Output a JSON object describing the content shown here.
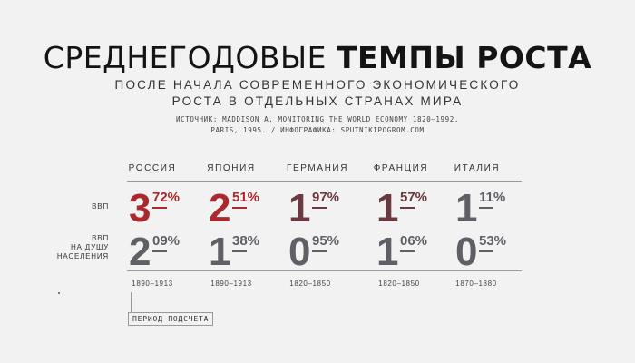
{
  "title": {
    "light": "СРЕДНЕГОДОВЫЕ",
    "bold": "ТЕМПЫ РОСТА"
  },
  "subtitle": {
    "line1": "ПОСЛЕ НАЧАЛА СОВРЕМЕННОГО ЭКОНОМИЧЕСКОГО",
    "line2": "РОСТА В ОТДЕЛЬНЫХ СТРАНАХ МИРА"
  },
  "source": {
    "line1": "ИСТОЧНИК: MADDISON A. MONITORING THE WORLD ECONOMY 1820–1992.",
    "line2": "PARIS, 1995.  / ИНФОГРАФИКА: SPUTNIKIPOGROM.COM"
  },
  "row_labels": {
    "gdp": "ВВП",
    "gdp_per_capita": [
      "ВВП",
      "НА ДУШУ",
      "НАСЕЛЕНИЯ"
    ]
  },
  "legend": "ПЕРИОД ПОДСЧЕТА",
  "colors": {
    "red": "#a8292e",
    "maroon": "#6b3a40",
    "gray": "#5e6066"
  },
  "countries": [
    {
      "name": "РОССИЯ",
      "gdp_int": "3",
      "gdp_frac": "72%",
      "gdp_pc_int": "2",
      "gdp_pc_frac": "09%",
      "period": "1890–1913"
    },
    {
      "name": "ЯПОНИЯ",
      "gdp_int": "2",
      "gdp_frac": "51%",
      "gdp_pc_int": "1",
      "gdp_pc_frac": "38%",
      "period": "1890–1913"
    },
    {
      "name": "ГЕРМАНИЯ",
      "gdp_int": "1",
      "gdp_frac": "97%",
      "gdp_pc_int": "0",
      "gdp_pc_frac": "95%",
      "period": "1820–1850"
    },
    {
      "name": "ФРАНЦИЯ",
      "gdp_int": "1",
      "gdp_frac": "57%",
      "gdp_pc_int": "1",
      "gdp_pc_frac": "06%",
      "period": "1820–1850"
    },
    {
      "name": "ИТАЛИЯ",
      "gdp_int": "1",
      "gdp_frac": "11%",
      "gdp_pc_int": "0",
      "gdp_pc_frac": "53%",
      "period": "1870–1880"
    }
  ]
}
